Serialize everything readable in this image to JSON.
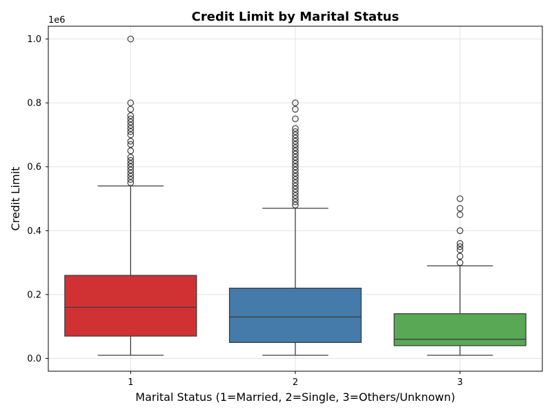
{
  "chart_data": {
    "type": "box",
    "title": "Credit Limit by Marital Status",
    "xlabel": "Marital Status (1=Married, 2=Single, 3=Others/Unknown)",
    "ylabel": "Credit Limit",
    "y_offset_label": "1e6",
    "ylim": [
      -0.04,
      1.04
    ],
    "y_ticks": [
      0.0,
      0.2,
      0.4,
      0.6,
      0.8,
      1.0
    ],
    "y_tick_labels": [
      "0.0",
      "0.2",
      "0.4",
      "0.6",
      "0.8",
      "1.0"
    ],
    "grid": true,
    "categories": [
      "1",
      "2",
      "3"
    ],
    "boxes": [
      {
        "category": "1",
        "color": "#d03234",
        "whisker_low": 0.01,
        "q1": 0.07,
        "median": 0.16,
        "q3": 0.26,
        "whisker_high": 0.54,
        "outliers": [
          0.55,
          0.56,
          0.57,
          0.58,
          0.59,
          0.6,
          0.61,
          0.62,
          0.63,
          0.65,
          0.67,
          0.68,
          0.7,
          0.71,
          0.72,
          0.73,
          0.74,
          0.75,
          0.76,
          0.78,
          0.8,
          1.0
        ]
      },
      {
        "category": "2",
        "color": "#447bab",
        "whisker_low": 0.01,
        "q1": 0.05,
        "median": 0.13,
        "q3": 0.22,
        "whisker_high": 0.47,
        "outliers": [
          0.48,
          0.49,
          0.5,
          0.51,
          0.52,
          0.53,
          0.54,
          0.55,
          0.56,
          0.57,
          0.58,
          0.59,
          0.6,
          0.61,
          0.62,
          0.63,
          0.64,
          0.65,
          0.66,
          0.67,
          0.68,
          0.69,
          0.7,
          0.71,
          0.72,
          0.75,
          0.78,
          0.8
        ]
      },
      {
        "category": "3",
        "color": "#59a856",
        "whisker_low": 0.01,
        "q1": 0.04,
        "median": 0.06,
        "q3": 0.14,
        "whisker_high": 0.29,
        "outliers": [
          0.3,
          0.32,
          0.34,
          0.35,
          0.36,
          0.4,
          0.45,
          0.47,
          0.5
        ]
      }
    ]
  }
}
